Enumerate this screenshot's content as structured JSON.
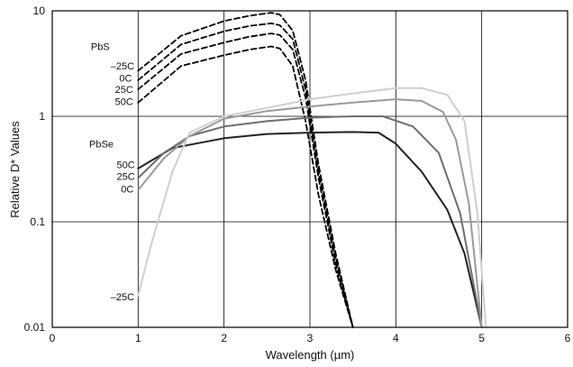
{
  "chart_data": {
    "type": "line",
    "title": "",
    "xlabel": "Wavelength (µm)",
    "ylabel": "Relative D* Values",
    "xlim": [
      0,
      6
    ],
    "ylim": [
      0.01,
      10
    ],
    "yscale": "log",
    "grid": true,
    "x_ticks": [
      "0",
      "1",
      "2",
      "3",
      "4",
      "5",
      "6"
    ],
    "y_ticks": [
      {
        "value": 10,
        "label": "10"
      },
      {
        "value": 1,
        "label": "1"
      },
      {
        "value": 0.1,
        "label": "0.1"
      },
      {
        "value": 0.01,
        "label": "0.01"
      }
    ],
    "annotations": [
      {
        "text": "PbS",
        "x": 0.45,
        "y": 4.6
      },
      {
        "text": "–25C",
        "x": 0.68,
        "y": 3.0
      },
      {
        "text": "0C",
        "x": 0.78,
        "y": 2.3
      },
      {
        "text": "25C",
        "x": 0.73,
        "y": 1.8
      },
      {
        "text": "50C",
        "x": 0.73,
        "y": 1.38
      },
      {
        "text": "PbSe",
        "x": 0.43,
        "y": 0.55
      },
      {
        "text": "50C",
        "x": 0.75,
        "y": 0.35
      },
      {
        "text": "25C",
        "x": 0.75,
        "y": 0.27
      },
      {
        "text": "0C",
        "x": 0.8,
        "y": 0.205
      },
      {
        "text": "–25C",
        "x": 0.68,
        "y": 0.0195
      }
    ],
    "series": [
      {
        "material": "PbS",
        "temperature": "–25C",
        "color": "#000000",
        "dash": "dashed",
        "x": [
          1.0,
          1.5,
          2.0,
          2.3,
          2.55,
          2.65,
          2.8,
          2.95,
          3.1,
          3.3,
          3.5
        ],
        "y": [
          2.7,
          5.8,
          8.0,
          9.0,
          9.6,
          9.2,
          6.5,
          2.2,
          0.35,
          0.05,
          0.01
        ]
      },
      {
        "material": "PbS",
        "temperature": "0C",
        "color": "#000000",
        "dash": "dashed",
        "x": [
          1.0,
          1.5,
          2.0,
          2.3,
          2.55,
          2.65,
          2.8,
          2.95,
          3.1,
          3.3,
          3.5
        ],
        "y": [
          2.2,
          4.8,
          6.4,
          7.2,
          7.6,
          7.3,
          5.4,
          1.8,
          0.3,
          0.045,
          0.01
        ]
      },
      {
        "material": "PbS",
        "temperature": "25C",
        "color": "#000000",
        "dash": "dashed",
        "x": [
          1.0,
          1.5,
          2.0,
          2.3,
          2.55,
          2.65,
          2.8,
          2.95,
          3.1,
          3.3,
          3.5
        ],
        "y": [
          1.8,
          3.9,
          5.0,
          5.7,
          6.1,
          5.9,
          4.3,
          1.5,
          0.26,
          0.04,
          0.01
        ]
      },
      {
        "material": "PbS",
        "temperature": "50C",
        "color": "#000000",
        "dash": "dashed",
        "x": [
          1.0,
          1.5,
          2.0,
          2.3,
          2.55,
          2.65,
          2.8,
          2.95,
          3.1,
          3.3,
          3.5
        ],
        "y": [
          1.35,
          3.0,
          3.8,
          4.3,
          4.6,
          4.4,
          3.0,
          0.9,
          0.18,
          0.035,
          0.01
        ]
      },
      {
        "material": "PbSe",
        "temperature": "50C",
        "color": "#222222",
        "dash": "solid",
        "x": [
          1.0,
          1.4,
          2.0,
          2.5,
          3.0,
          3.5,
          3.8,
          4.0,
          4.3,
          4.6,
          4.8,
          5.0
        ],
        "y": [
          0.32,
          0.5,
          0.62,
          0.68,
          0.7,
          0.71,
          0.7,
          0.55,
          0.3,
          0.13,
          0.05,
          0.01
        ]
      },
      {
        "material": "PbSe",
        "temperature": "25C",
        "color": "#6e6e6e",
        "dash": "solid",
        "x": [
          1.0,
          1.3,
          1.6,
          2.0,
          2.5,
          3.0,
          3.5,
          3.85,
          4.2,
          4.5,
          4.75,
          5.0
        ],
        "y": [
          0.26,
          0.45,
          0.65,
          0.8,
          0.9,
          0.97,
          1.0,
          1.0,
          0.8,
          0.45,
          0.12,
          0.01
        ]
      },
      {
        "material": "PbSe",
        "temperature": "0C",
        "color": "#9a9a9a",
        "dash": "solid",
        "x": [
          1.0,
          1.3,
          1.6,
          2.0,
          2.5,
          3.0,
          3.5,
          4.0,
          4.3,
          4.55,
          4.7,
          4.85,
          5.0
        ],
        "y": [
          0.2,
          0.4,
          0.65,
          0.95,
          1.12,
          1.24,
          1.35,
          1.45,
          1.4,
          1.1,
          0.6,
          0.15,
          0.01
        ]
      },
      {
        "material": "PbSe",
        "temperature": "–25C",
        "color": "#cfcfcf",
        "dash": "solid",
        "x": [
          1.0,
          1.15,
          1.4,
          1.6,
          2.0,
          2.5,
          3.0,
          3.5,
          4.0,
          4.3,
          4.6,
          4.8,
          4.95,
          5.05
        ],
        "y": [
          0.02,
          0.06,
          0.3,
          0.7,
          1.0,
          1.2,
          1.45,
          1.65,
          1.85,
          1.85,
          1.6,
          0.9,
          0.12,
          0.01
        ]
      }
    ]
  }
}
